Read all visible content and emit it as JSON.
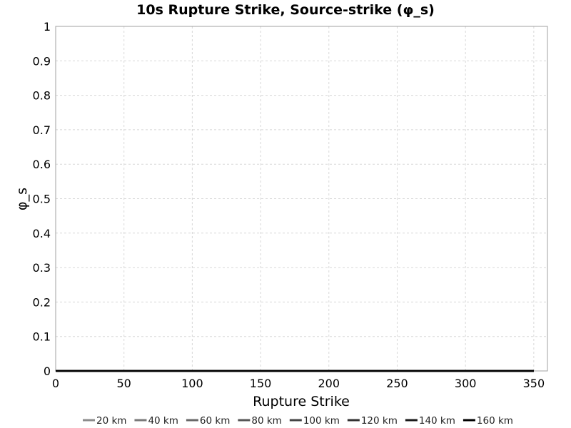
{
  "chart_data": {
    "type": "line",
    "title": "10s Rupture Strike, Source-strike (φ_s)",
    "xlabel": "Rupture Strike",
    "ylabel": "φ_s",
    "xlim": [
      0,
      360
    ],
    "ylim": [
      0,
      1
    ],
    "xticks": [
      0,
      50,
      100,
      150,
      200,
      250,
      300,
      350
    ],
    "yticks": [
      0,
      0.1,
      0.2,
      0.3,
      0.4,
      0.5,
      0.6,
      0.7,
      0.8,
      0.9,
      1
    ],
    "grid": true,
    "legend_position": "bottom",
    "series": [
      {
        "name": "20 km",
        "color": "#8c8c8c",
        "x": [
          0,
          350
        ],
        "y": [
          0,
          0
        ]
      },
      {
        "name": "40 km",
        "color": "#7a7a7a",
        "x": [
          0,
          350
        ],
        "y": [
          0,
          0
        ]
      },
      {
        "name": "60 km",
        "color": "#686868",
        "x": [
          0,
          350
        ],
        "y": [
          0,
          0
        ]
      },
      {
        "name": "80 km",
        "color": "#565656",
        "x": [
          0,
          350
        ],
        "y": [
          0,
          0
        ]
      },
      {
        "name": "100 km",
        "color": "#444444",
        "x": [
          0,
          350
        ],
        "y": [
          0,
          0
        ]
      },
      {
        "name": "120 km",
        "color": "#323232",
        "x": [
          0,
          350
        ],
        "y": [
          0,
          0
        ]
      },
      {
        "name": "140 km",
        "color": "#1a1a1a",
        "x": [
          0,
          350
        ],
        "y": [
          0,
          0
        ]
      },
      {
        "name": "160 km",
        "color": "#000000",
        "x": [
          0,
          350
        ],
        "y": [
          0,
          0
        ]
      }
    ]
  }
}
